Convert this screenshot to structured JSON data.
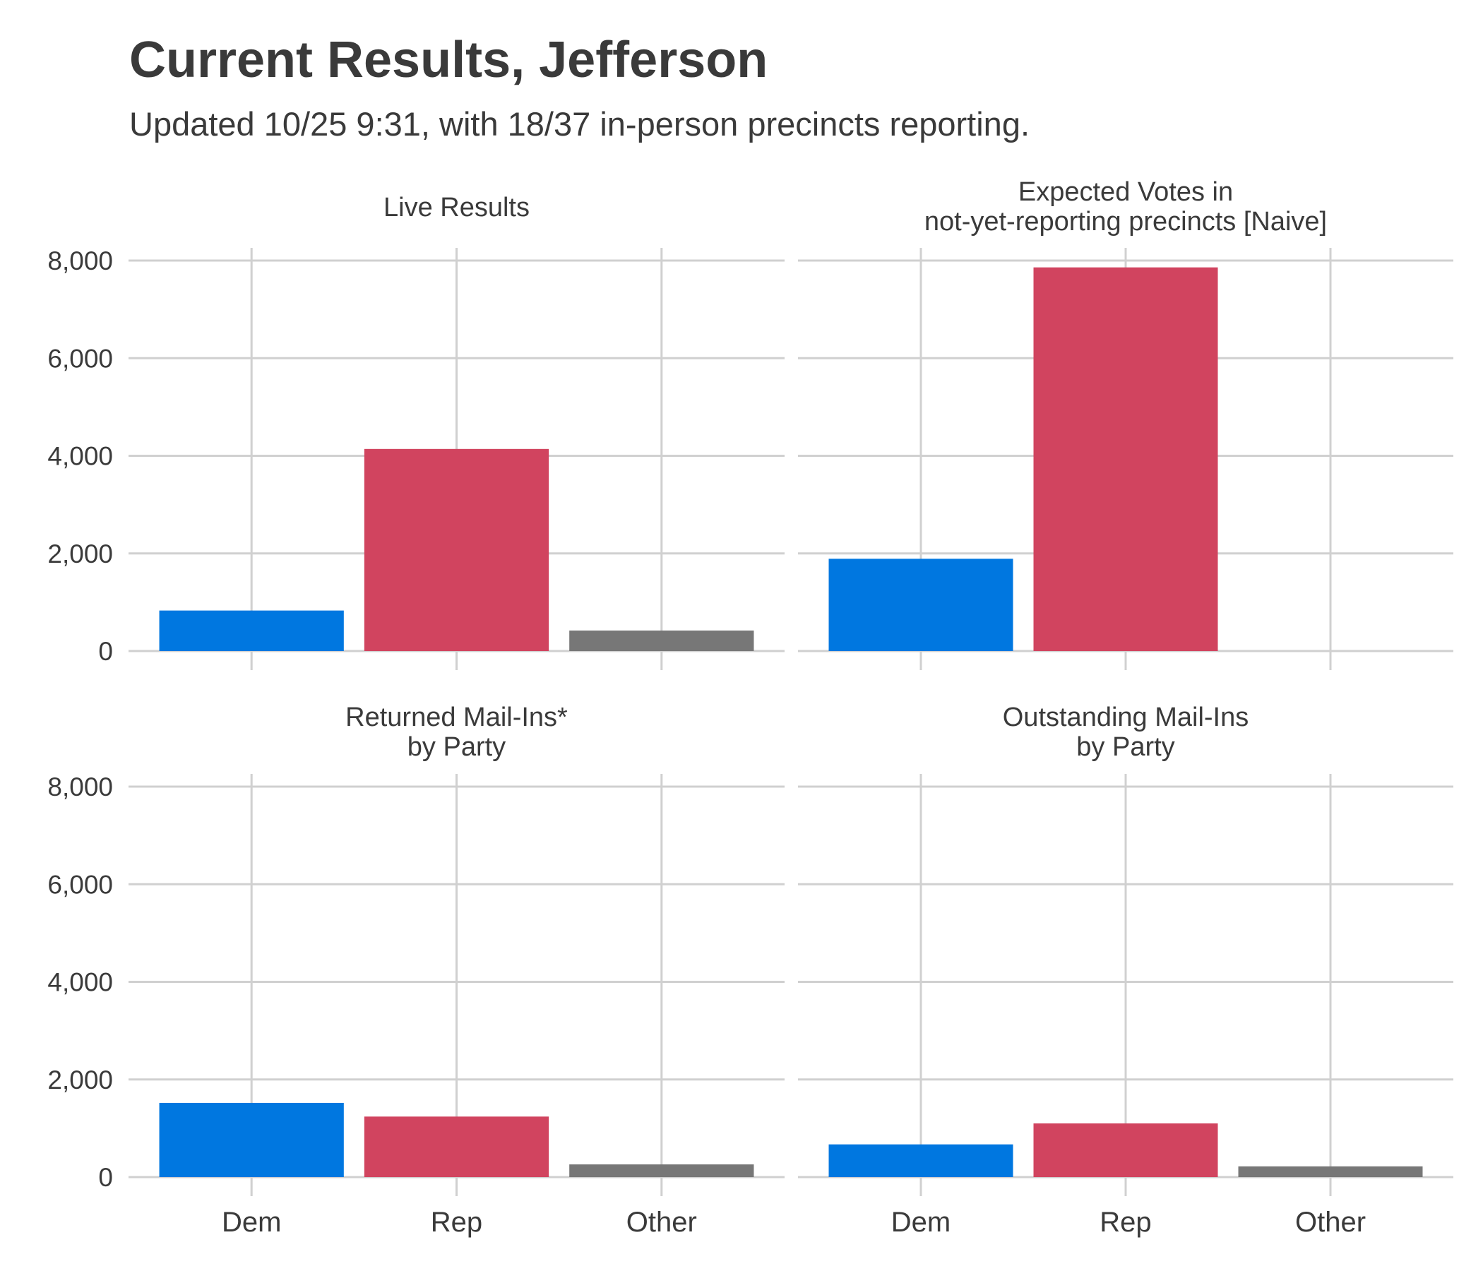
{
  "chart_data": {
    "type": "bar",
    "title": "Current Results, Jefferson",
    "subtitle": "Updated 10/25 9:31, with 18/37 in-person precincts reporting.",
    "categories": [
      "Dem",
      "Rep",
      "Other"
    ],
    "ylim": [
      0,
      8000
    ],
    "yticks": [
      0,
      2000,
      4000,
      6000,
      8000
    ],
    "ytick_labels": [
      "0",
      "2,000",
      "4,000",
      "6,000",
      "8,000"
    ],
    "grid": true,
    "legend": "none",
    "colors": {
      "Dem": "#0077e0",
      "Rep": "#d1445f",
      "Other": "#777777"
    },
    "facets": [
      {
        "title": [
          "Live Results"
        ],
        "values": [
          830,
          4140,
          420
        ]
      },
      {
        "title": [
          "Expected Votes in",
          "not-yet-reporting precincts [Naive]"
        ],
        "values": [
          1890,
          7860,
          0
        ]
      },
      {
        "title": [
          "Returned Mail-Ins*",
          "by Party"
        ],
        "values": [
          1520,
          1240,
          260
        ]
      },
      {
        "title": [
          "Outstanding Mail-Ins",
          "by Party"
        ],
        "values": [
          670,
          1100,
          220
        ]
      }
    ]
  }
}
